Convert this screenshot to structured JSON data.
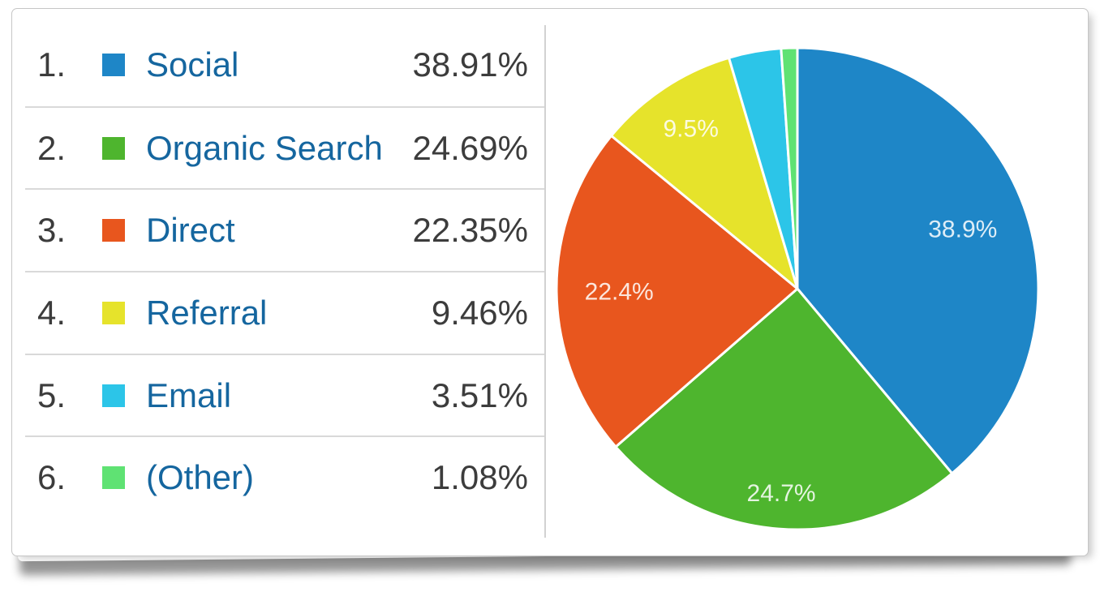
{
  "card": {
    "kind": "traffic-channels-report"
  },
  "table": {
    "rows": [
      {
        "rank": "1.",
        "label": "Social",
        "value": "38.91%",
        "color": "#1e86c7"
      },
      {
        "rank": "2.",
        "label": "Organic Search",
        "value": "24.69%",
        "color": "#4eb52e"
      },
      {
        "rank": "3.",
        "label": "Direct",
        "value": "22.35%",
        "color": "#e8561e"
      },
      {
        "rank": "4.",
        "label": "Referral",
        "value": "9.46%",
        "color": "#e6e32b"
      },
      {
        "rank": "5.",
        "label": "Email",
        "value": "3.51%",
        "color": "#2cc5e8"
      },
      {
        "rank": "6.",
        "label": "(Other)",
        "value": "1.08%",
        "color": "#5fe273"
      }
    ],
    "link_color": "#15669f",
    "value_color": "#3c3c3c"
  },
  "chart_data": {
    "type": "pie",
    "categories": [
      "Social",
      "Organic Search",
      "Direct",
      "Referral",
      "Email",
      "(Other)"
    ],
    "values": [
      38.91,
      24.69,
      22.35,
      9.46,
      3.51,
      1.08
    ],
    "slice_labels": [
      "38.9%",
      "24.7%",
      "22.4%",
      "9.5%",
      "",
      ""
    ],
    "colors": [
      "#1e86c7",
      "#4eb52e",
      "#e8561e",
      "#e6e32b",
      "#2cc5e8",
      "#5fe273"
    ],
    "start_angle_deg": 0,
    "direction": "clockwise",
    "slice_border_color": "#ffffff",
    "label_color": "#ffffff",
    "legend_position": "left-table",
    "title": ""
  }
}
